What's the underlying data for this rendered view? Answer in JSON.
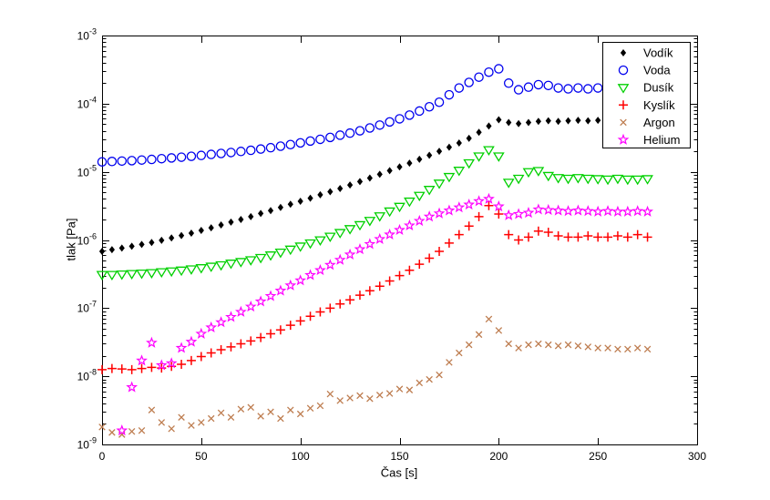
{
  "figure": {
    "background": "#ffffff",
    "axes_color": "#000000"
  },
  "chart_data": {
    "type": "scatter",
    "title": "",
    "xlabel": "Čas [s]",
    "ylabel": "tlak [Pa]",
    "xlim": [
      0,
      300
    ],
    "yscale": "log",
    "ylim_exponents": [
      -9,
      -3
    ],
    "xticks": [
      0,
      50,
      100,
      150,
      200,
      250,
      300
    ],
    "ytick_exponents": [
      -3,
      -4,
      -5,
      -6,
      -7,
      -8,
      -9
    ],
    "grid": false,
    "legend_position": "top-right",
    "x": [
      0,
      5,
      10,
      15,
      20,
      25,
      30,
      35,
      40,
      45,
      50,
      55,
      60,
      65,
      70,
      75,
      80,
      85,
      90,
      95,
      100,
      105,
      110,
      115,
      120,
      125,
      130,
      135,
      140,
      145,
      150,
      155,
      160,
      165,
      170,
      175,
      180,
      185,
      190,
      195,
      200,
      205,
      210,
      215,
      220,
      225,
      230,
      235,
      240,
      245,
      250,
      255,
      260,
      265,
      270,
      275
    ],
    "series": [
      {
        "name": "Vodík",
        "marker": "diamond-filled",
        "color": "#000000",
        "y": [
          6.8e-07,
          7.2e-07,
          7.6e-07,
          8.1e-07,
          8.6e-07,
          9.2e-07,
          9.9e-07,
          1.07e-06,
          1.16e-06,
          1.26e-06,
          1.38e-06,
          1.51e-06,
          1.66e-06,
          1.83e-06,
          2e-06,
          2.2e-06,
          2.45e-06,
          2.7e-06,
          3e-06,
          3.35e-06,
          3.7e-06,
          4.1e-06,
          4.6e-06,
          5.1e-06,
          5.7e-06,
          6.4e-06,
          7.2e-06,
          8.1e-06,
          9.2e-06,
          1.04e-05,
          1.18e-05,
          1.34e-05,
          1.53e-05,
          1.75e-05,
          2e-05,
          2.3e-05,
          2.65e-05,
          3.1e-05,
          3.8e-05,
          4.7e-05,
          5.8e-05,
          5.3e-05,
          5.1e-05,
          5.3e-05,
          5.5e-05,
          5.6e-05,
          5.5e-05,
          5.6e-05,
          5.7e-05,
          5.6e-05,
          5.7e-05,
          5.7e-05,
          5.6e-05,
          5.7e-05,
          5.7e-05,
          5.8e-05
        ]
      },
      {
        "name": "Voda",
        "marker": "circle",
        "color": "#0000EE",
        "y": [
          1.4e-05,
          1.42e-05,
          1.44e-05,
          1.46e-05,
          1.49e-05,
          1.52e-05,
          1.56e-05,
          1.6e-05,
          1.64e-05,
          1.69e-05,
          1.74e-05,
          1.8e-05,
          1.86e-05,
          1.92e-05,
          1.99e-05,
          2.07e-05,
          2.16e-05,
          2.26e-05,
          2.38e-05,
          2.51e-05,
          2.66e-05,
          2.83e-05,
          3e-05,
          3.2e-05,
          3.45e-05,
          3.7e-05,
          4e-05,
          4.4e-05,
          4.85e-05,
          5.4e-05,
          6e-05,
          6.8e-05,
          7.8e-05,
          9e-05,
          0.000105,
          0.000135,
          0.00017,
          0.000205,
          0.000245,
          0.00029,
          0.000325,
          0.0002,
          0.00016,
          0.000175,
          0.00019,
          0.000185,
          0.00017,
          0.000165,
          0.00017,
          0.000165,
          0.00017,
          0.000162,
          0.000168,
          0.000163,
          0.000167,
          0.000164
        ]
      },
      {
        "name": "Dusík",
        "marker": "triangle-down",
        "color": "#00D000",
        "y": [
          3.1e-07,
          3.1e-07,
          3.15e-07,
          3.2e-07,
          3.25e-07,
          3.3e-07,
          3.4e-07,
          3.5e-07,
          3.6e-07,
          3.75e-07,
          3.9e-07,
          4.1e-07,
          4.3e-07,
          4.55e-07,
          4.8e-07,
          5.1e-07,
          5.5e-07,
          6e-07,
          6.6e-07,
          7.3e-07,
          8.1e-07,
          9e-07,
          1e-06,
          1.13e-06,
          1.28e-06,
          1.46e-06,
          1.67e-06,
          1.93e-06,
          2.25e-06,
          2.65e-06,
          3.1e-06,
          3.7e-06,
          4.5e-06,
          5.5e-06,
          6.8e-06,
          8.5e-06,
          1.05e-05,
          1.35e-05,
          1.7e-05,
          2.1e-05,
          1.7e-05,
          7e-06,
          8e-06,
          1e-05,
          1.04e-05,
          8.8e-06,
          8.2e-06,
          8e-06,
          8.2e-06,
          8e-06,
          7.9e-06,
          7.8e-06,
          8e-06,
          7.8e-06,
          7.8e-06,
          7.9e-06
        ]
      },
      {
        "name": "Kyslík",
        "marker": "plus",
        "color": "#FF0000",
        "y": [
          1.25e-08,
          1.3e-08,
          1.28e-08,
          1.25e-08,
          1.3e-08,
          1.35e-08,
          1.32e-08,
          1.4e-08,
          1.5e-08,
          1.7e-08,
          1.95e-08,
          2.2e-08,
          2.45e-08,
          2.7e-08,
          3e-08,
          3.3e-08,
          3.7e-08,
          4.2e-08,
          4.8e-08,
          5.6e-08,
          6.5e-08,
          7.6e-08,
          8.8e-08,
          1e-07,
          1.15e-07,
          1.32e-07,
          1.55e-07,
          1.8e-07,
          2.1e-07,
          2.5e-07,
          3e-07,
          3.6e-07,
          4.4e-07,
          5.4e-07,
          6.8e-07,
          9e-07,
          1.2e-06,
          1.6e-06,
          2.2e-06,
          3.2e-06,
          2.4e-06,
          1.2e-06,
          1e-06,
          1.1e-06,
          1.35e-06,
          1.3e-06,
          1.15e-06,
          1.1e-06,
          1.1e-06,
          1.15e-06,
          1.1e-06,
          1.1e-06,
          1.15e-06,
          1.1e-06,
          1.2e-06,
          1.1e-06
        ]
      },
      {
        "name": "Argon",
        "marker": "x",
        "color": "#BE7D50",
        "y": [
          1.8e-09,
          1.5e-09,
          1.4e-09,
          1.55e-09,
          1.6e-09,
          3.2e-09,
          2.1e-09,
          1.7e-09,
          2.5e-09,
          1.9e-09,
          2.1e-09,
          2.4e-09,
          2.9e-09,
          2.5e-09,
          3.3e-09,
          3.5e-09,
          2.6e-09,
          3e-09,
          2.4e-09,
          3.2e-09,
          2.8e-09,
          3.4e-09,
          3.7e-09,
          5.5e-09,
          4.4e-09,
          4.8e-09,
          5.2e-09,
          4.7e-09,
          5.3e-09,
          5.6e-09,
          6.5e-09,
          6.3e-09,
          8e-09,
          9e-09,
          1.05e-08,
          1.6e-08,
          2.2e-08,
          2.9e-08,
          4.1e-08,
          6.9e-08,
          4.7e-08,
          3e-08,
          2.6e-08,
          2.9e-08,
          3e-08,
          2.9e-08,
          2.8e-08,
          2.9e-08,
          2.8e-08,
          2.7e-08,
          2.6e-08,
          2.6e-08,
          2.5e-08,
          2.5e-08,
          2.6e-08,
          2.5e-08
        ]
      },
      {
        "name": "Helium",
        "marker": "pentagram",
        "color": "#FF00FF",
        "x": [
          10,
          15,
          20,
          25,
          30,
          35,
          40,
          45,
          50,
          55,
          60,
          65,
          70,
          75,
          80,
          85,
          90,
          95,
          100,
          105,
          110,
          115,
          120,
          125,
          130,
          135,
          140,
          145,
          150,
          155,
          160,
          165,
          170,
          175,
          180,
          185,
          190,
          195,
          200,
          205,
          210,
          215,
          220,
          225,
          230,
          235,
          240,
          245,
          250,
          255,
          260,
          265,
          270,
          275
        ],
        "y": [
          1.6e-09,
          6.9e-09,
          1.7e-08,
          3.1e-08,
          1.45e-08,
          1.55e-08,
          2.6e-08,
          3.2e-08,
          4.2e-08,
          5.2e-08,
          6.2e-08,
          7.4e-08,
          8.8e-08,
          1.05e-07,
          1.25e-07,
          1.5e-07,
          1.8e-07,
          2.15e-07,
          2.55e-07,
          3.05e-07,
          3.6e-07,
          4.3e-07,
          5.1e-07,
          6.1e-07,
          7.3e-07,
          8.7e-07,
          1.03e-06,
          1.2e-06,
          1.4e-06,
          1.63e-06,
          1.9e-06,
          2.2e-06,
          2.45e-06,
          2.7e-06,
          3e-06,
          3.3e-06,
          3.7e-06,
          4e-06,
          3.1e-06,
          2.3e-06,
          2.4e-06,
          2.5e-06,
          2.8e-06,
          2.75e-06,
          2.7e-06,
          2.65e-06,
          2.7e-06,
          2.65e-06,
          2.6e-06,
          2.65e-06,
          2.6e-06,
          2.6e-06,
          2.65e-06,
          2.6e-06
        ]
      }
    ],
    "legend_entries": [
      "Vodík",
      "Voda",
      "Dusík",
      "Kyslík",
      "Argon",
      "Helium"
    ]
  }
}
